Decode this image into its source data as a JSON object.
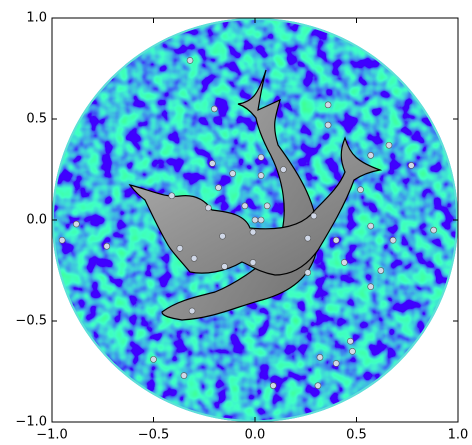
{
  "chart_data": {
    "type": "scatter",
    "x": [
      -0.32,
      -0.2,
      0.36,
      0.36,
      -0.21,
      0.03,
      -0.11,
      0.03,
      -0.18,
      0.14,
      -0.41,
      -0.05,
      0.06,
      -0.23,
      0,
      0.03,
      0.29,
      -0.01,
      -0.16,
      0.26,
      -0.37,
      -0.3,
      -0.01,
      -0.15,
      0.26,
      0.4,
      0.44,
      0.57,
      0.68,
      0.62,
      0.57,
      0.52,
      0.57,
      0.66,
      0.77,
      0.88,
      -0.88,
      -0.95,
      -0.73,
      -0.31,
      -0.5,
      -0.35,
      0.47,
      0.48,
      0.32,
      0.4,
      0.09,
      0.31
    ],
    "values": [
      0.79,
      0.55,
      0.57,
      0.47,
      0.28,
      0.31,
      0.23,
      0.22,
      0.16,
      0.25,
      0.12,
      0.07,
      0.07,
      0.06,
      0,
      0,
      0.02,
      -0.06,
      -0.08,
      -0.09,
      -0.14,
      -0.19,
      -0.21,
      -0.23,
      -0.26,
      -0.1,
      -0.21,
      -0.03,
      -0.1,
      -0.25,
      -0.33,
      0.15,
      0.32,
      0.37,
      0.27,
      -0.05,
      -0.02,
      -0.1,
      -0.13,
      -0.45,
      -0.69,
      -0.77,
      -0.6,
      -0.65,
      -0.68,
      -0.71,
      -0.82,
      -0.82
    ],
    "color": "#d0d8e8",
    "xlim": [
      -1,
      1
    ],
    "ylim": [
      -1,
      1
    ],
    "xticks": [
      {
        "value": -1,
        "label": "−1.0"
      },
      {
        "value": -0.5,
        "label": "−0.5"
      },
      {
        "value": 0,
        "label": "0.0"
      },
      {
        "value": 0.5,
        "label": "0.5"
      },
      {
        "value": 1,
        "label": "1.0"
      }
    ],
    "yticks": [
      {
        "value": -1,
        "label": "−1.0"
      },
      {
        "value": -0.5,
        "label": "−0.5"
      },
      {
        "value": 0,
        "label": "0.0"
      },
      {
        "value": 0.5,
        "label": "0.5"
      },
      {
        "value": 1,
        "label": "1.0"
      }
    ]
  }
}
